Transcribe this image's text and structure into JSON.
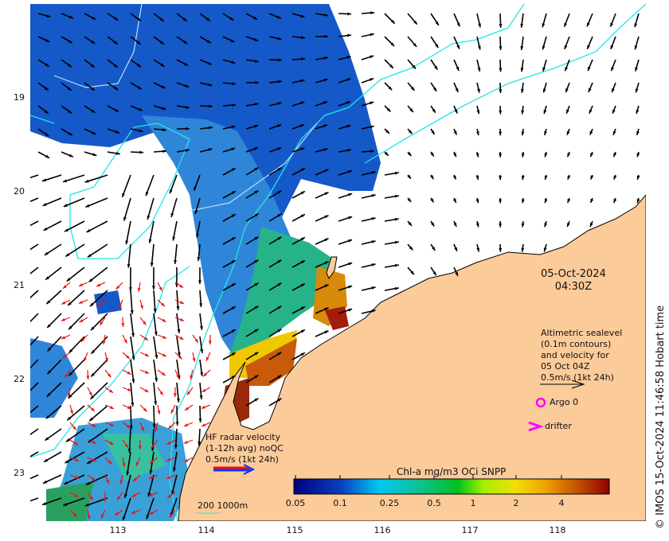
{
  "map": {
    "date": "05-Oct-2024",
    "time": "04:30Z",
    "lat_ticks": [
      "19",
      "20",
      "21",
      "22",
      "23"
    ],
    "lon_ticks": [
      "113",
      "114",
      "115",
      "116",
      "117",
      "118"
    ],
    "credit": "© IMOS 15-Oct-2024 11:46:58 Hobart time",
    "colors": {
      "land": "#fccb9a",
      "ocean": "#ffffff",
      "contour": "#22e5e5",
      "radar_arrow": "#ee1111",
      "argo": "#ff00ff"
    }
  },
  "legend": {
    "altimetry": [
      "Altimetric sealevel",
      "(0.1m contours)",
      "and velocity for",
      "05 Oct 04Z",
      "0.5m/s (1kt 24h)"
    ],
    "argo_label": "Argo 0",
    "drifter_label": "drifter",
    "radar": [
      "HF radar velocity",
      "(1-12h avg) noQC",
      "0.5m/s (1kt 24h)"
    ],
    "bathy": "200  1000m"
  },
  "colorbar": {
    "title": "Chl-a mg/m3 OCi SNPP",
    "ticks": [
      "0.05",
      "0.1",
      "0.25",
      "0.5",
      "1",
      "2",
      "4"
    ]
  }
}
